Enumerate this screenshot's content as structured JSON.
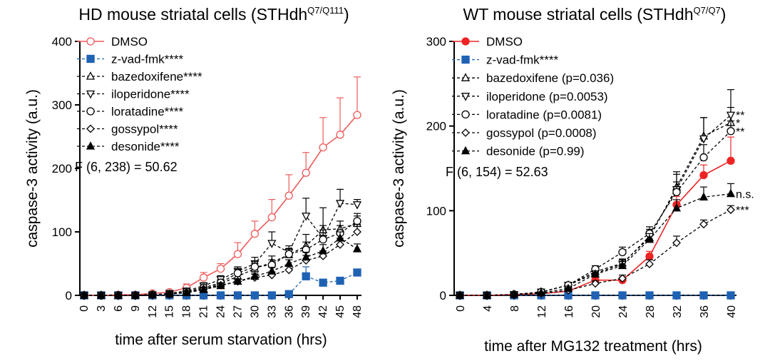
{
  "chart_data": [
    {
      "type": "line",
      "title_main": "HD mouse striatal cells (STHdh",
      "title_sup": "Q7/Q111",
      "title_close": ")",
      "xlabel": "time after serum starvation (hrs)",
      "ylabel": "caspase-3 activity (a.u.)",
      "x": [
        0,
        3,
        6,
        9,
        12,
        15,
        18,
        21,
        24,
        27,
        30,
        33,
        36,
        39,
        42,
        45,
        48
      ],
      "x_tick_labels": [
        "0",
        "3",
        "6",
        "9",
        "12",
        "15",
        "18",
        "21",
        "24",
        "27",
        "30",
        "33",
        "36",
        "39",
        "42",
        "45",
        "48"
      ],
      "ylim": [
        0,
        400
      ],
      "y_ticks": [
        0,
        100,
        200,
        300,
        400
      ],
      "y_tick_labels": [
        "0",
        "100",
        "200",
        "300",
        "400"
      ],
      "stat_text": "F (6, 238) = 50.62",
      "legend_position": "top-left",
      "series": [
        {
          "name": "DMSO",
          "marker": "circle-open",
          "color": "#f05a5a",
          "dashed": false,
          "values": [
            0,
            0,
            1,
            1,
            3,
            5,
            12,
            28,
            42,
            65,
            97,
            123,
            157,
            193,
            233,
            253,
            284
          ],
          "errors": [
            0,
            0,
            1,
            1,
            2,
            3,
            6,
            8,
            8,
            18,
            20,
            28,
            33,
            32,
            47,
            58,
            60
          ]
        },
        {
          "name": "z-vad-fmk****",
          "marker": "square",
          "color": "#1f62b4",
          "dashed": true,
          "values": [
            0,
            0,
            0,
            0,
            0,
            0,
            0,
            0,
            0,
            0,
            0,
            0,
            2,
            30,
            20,
            23,
            36
          ],
          "errors": [
            0,
            0,
            0,
            0,
            0,
            0,
            0,
            0,
            0,
            0,
            0,
            0,
            1,
            15,
            0,
            0,
            0
          ]
        },
        {
          "name": "bazedoxifene****",
          "marker": "triangle-up-open",
          "color": "#000000",
          "dashed": true,
          "values": [
            0,
            0,
            0,
            0,
            1,
            2,
            5,
            10,
            18,
            30,
            42,
            52,
            64,
            78,
            103,
            105,
            113
          ],
          "errors": [
            0,
            0,
            0,
            0,
            1,
            1,
            2,
            4,
            5,
            8,
            8,
            10,
            10,
            18,
            35,
            12,
            12
          ]
        },
        {
          "name": "iloperidone****",
          "marker": "triangle-down-open",
          "color": "#000000",
          "dashed": true,
          "values": [
            0,
            0,
            0,
            0,
            1,
            3,
            7,
            15,
            25,
            38,
            50,
            82,
            68,
            125,
            90,
            145,
            143
          ],
          "errors": [
            0,
            0,
            0,
            0,
            1,
            1,
            3,
            5,
            6,
            7,
            10,
            18,
            10,
            28,
            20,
            22,
            8
          ]
        },
        {
          "name": "loratadine****",
          "marker": "circle-open",
          "color": "#000000",
          "dashed": true,
          "values": [
            0,
            0,
            0,
            0,
            1,
            2,
            6,
            12,
            20,
            35,
            45,
            48,
            65,
            72,
            88,
            98,
            117
          ],
          "errors": [
            0,
            0,
            0,
            0,
            1,
            1,
            2,
            4,
            5,
            6,
            8,
            8,
            8,
            12,
            15,
            12,
            12
          ]
        },
        {
          "name": "gossypol****",
          "marker": "diamond-open",
          "color": "#000000",
          "dashed": true,
          "values": [
            0,
            0,
            0,
            0,
            1,
            2,
            5,
            10,
            16,
            22,
            28,
            32,
            40,
            55,
            62,
            80,
            100
          ],
          "errors": [
            0,
            0,
            0,
            0,
            1,
            1,
            2,
            3,
            4,
            4,
            5,
            5,
            6,
            8,
            8,
            10,
            12
          ]
        },
        {
          "name": "desonide****",
          "marker": "triangle-up",
          "color": "#000000",
          "dashed": true,
          "values": [
            0,
            0,
            0,
            0,
            1,
            2,
            4,
            9,
            15,
            22,
            30,
            38,
            50,
            60,
            70,
            90,
            73
          ],
          "errors": [
            0,
            0,
            0,
            0,
            1,
            1,
            2,
            3,
            3,
            4,
            5,
            6,
            6,
            8,
            10,
            10,
            8
          ]
        }
      ]
    },
    {
      "type": "line",
      "title_main": "WT mouse striatal cells (STHdh",
      "title_sup": "Q7/Q7",
      "title_close": ")",
      "xlabel": "time after MG132 treatment (hrs)",
      "ylabel": "caspase-3 activity (a.u.)",
      "x": [
        0,
        4,
        8,
        12,
        16,
        20,
        24,
        28,
        32,
        36,
        40
      ],
      "x_tick_labels": [
        "0",
        "4",
        "8",
        "12",
        "16",
        "20",
        "24",
        "28",
        "32",
        "36",
        "40"
      ],
      "ylim": [
        0,
        300
      ],
      "y_ticks": [
        0,
        100,
        200,
        300
      ],
      "y_tick_labels": [
        "0",
        "100",
        "200",
        "300"
      ],
      "stat_text": "F (6, 154) = 52.63",
      "legend_position": "top-left",
      "series": [
        {
          "name": "DMSO",
          "marker": "circle",
          "color": "#ee2424",
          "dashed": false,
          "values": [
            0,
            0,
            1,
            2,
            5,
            18,
            18,
            46,
            107,
            142,
            159
          ],
          "annotation": "",
          "errors": [
            0,
            0,
            1,
            1,
            2,
            4,
            4,
            6,
            10,
            12,
            28
          ]
        },
        {
          "name": "z-vad-fmk****",
          "marker": "square",
          "color": "#1f62b4",
          "dashed": true,
          "values": [
            0,
            0,
            0,
            0,
            0,
            0,
            0,
            0,
            0,
            0,
            0
          ],
          "annotation": "",
          "errors": [
            0,
            0,
            0,
            0,
            0,
            0,
            0,
            0,
            0,
            0,
            0
          ]
        },
        {
          "name": "bazedoxifene (p=0.036)",
          "marker": "triangle-up-open",
          "color": "#000000",
          "dashed": true,
          "values": [
            0,
            0,
            1,
            4,
            12,
            28,
            38,
            68,
            128,
            188,
            204
          ],
          "annotation": "*",
          "errors": [
            0,
            0,
            1,
            1,
            3,
            5,
            5,
            8,
            18,
            22,
            18
          ]
        },
        {
          "name": "iloperidone (p=0.0053)",
          "marker": "triangle-down-open",
          "color": "#000000",
          "dashed": true,
          "values": [
            0,
            0,
            1,
            4,
            12,
            26,
            37,
            70,
            125,
            185,
            213
          ],
          "annotation": "**",
          "errors": [
            0,
            0,
            1,
            1,
            3,
            4,
            5,
            8,
            18,
            25,
            30
          ]
        },
        {
          "name": "loratadine (p=0.0081)",
          "marker": "circle-open",
          "color": "#000000",
          "dashed": true,
          "values": [
            0,
            0,
            1,
            4,
            12,
            31,
            51,
            73,
            122,
            163,
            194
          ],
          "annotation": "**",
          "errors": [
            0,
            0,
            1,
            1,
            3,
            4,
            6,
            8,
            12,
            15,
            12
          ]
        },
        {
          "name": "gossypol (p=0.0008)",
          "marker": "diamond-open",
          "color": "#000000",
          "dashed": true,
          "values": [
            0,
            0,
            1,
            2,
            6,
            14,
            20,
            37,
            62,
            84,
            101
          ],
          "annotation": "***",
          "errors": [
            0,
            0,
            1,
            1,
            2,
            3,
            4,
            5,
            8,
            5,
            5
          ]
        },
        {
          "name": "desonide (p=0.99)",
          "marker": "triangle-up",
          "color": "#000000",
          "dashed": true,
          "values": [
            0,
            0,
            1,
            3,
            8,
            25,
            35,
            66,
            103,
            116,
            120
          ],
          "annotation": "n.s.",
          "errors": [
            0,
            0,
            1,
            1,
            3,
            4,
            5,
            7,
            10,
            12,
            12
          ]
        }
      ]
    }
  ]
}
